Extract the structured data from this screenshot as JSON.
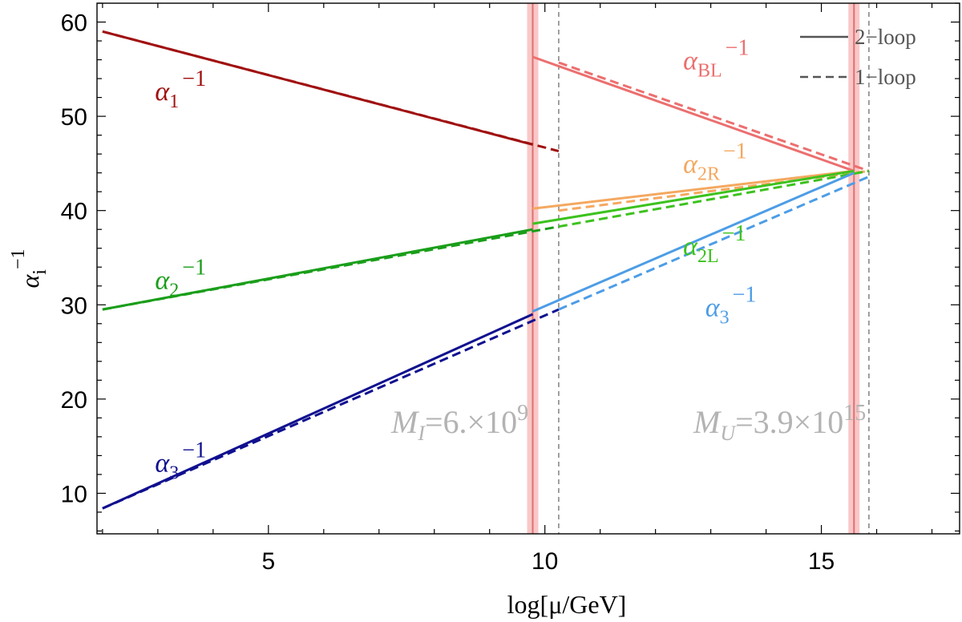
{
  "chart_data": {
    "type": "line",
    "xlabel": "log[μ/GeV]",
    "ylabel": "α_i^-1",
    "xlim": [
      1.9,
      17.5
    ],
    "ylim": [
      5.7,
      62
    ],
    "xticks": [
      5,
      10,
      15
    ],
    "yticks": [
      10,
      20,
      30,
      40,
      50,
      60
    ],
    "grid": false,
    "legend_position": "top-right",
    "legend": [
      {
        "style": "solid",
        "label": "2−loop"
      },
      {
        "style": "dashed",
        "label": "1−loop"
      }
    ],
    "thresholds": [
      {
        "x": 9.78,
        "x_1loop": 10.25,
        "label_prefix": "M",
        "label_sub": "I",
        "label_value": "=6.×10",
        "label_exp": "9"
      },
      {
        "x": 15.59,
        "x_1loop": 15.86,
        "label_prefix": "M",
        "label_sub": "U",
        "label_value": "=3.9×10",
        "label_exp": "15"
      }
    ],
    "series": [
      {
        "name": "α1−1 (2-loop)",
        "color": "#a01010",
        "style": "solid",
        "points": [
          [
            2.0,
            59.0
          ],
          [
            9.78,
            47.0
          ]
        ]
      },
      {
        "name": "α1−1 (1-loop)",
        "color": "#a01010",
        "style": "dashed",
        "points": [
          [
            2.0,
            59.0
          ],
          [
            10.25,
            46.3
          ]
        ]
      },
      {
        "name": "α2−1 (2-loop)",
        "color": "#1a9e1a",
        "style": "solid",
        "points": [
          [
            2.0,
            29.5
          ],
          [
            9.78,
            38.0
          ]
        ]
      },
      {
        "name": "α2−1 (1-loop)",
        "color": "#1a9e1a",
        "style": "dashed",
        "points": [
          [
            2.0,
            29.5
          ],
          [
            10.25,
            38.3
          ]
        ]
      },
      {
        "name": "α3−1 (2-loop)",
        "color": "#10108f",
        "style": "solid",
        "points": [
          [
            2.0,
            8.4
          ],
          [
            9.78,
            29.0
          ]
        ]
      },
      {
        "name": "α3−1 (1-loop)",
        "color": "#10108f",
        "style": "dashed",
        "points": [
          [
            2.0,
            8.4
          ],
          [
            10.25,
            29.5
          ]
        ]
      },
      {
        "name": "αBL−1 (2-loop)",
        "color": "#ec6f6f",
        "style": "solid",
        "points": [
          [
            9.78,
            56.3
          ],
          [
            15.59,
            44.2
          ]
        ]
      },
      {
        "name": "αBL−1 (1-loop)",
        "color": "#ec6f6f",
        "style": "dashed",
        "points": [
          [
            10.25,
            55.7
          ],
          [
            15.86,
            44.2
          ]
        ]
      },
      {
        "name": "α2R−1 (2-loop)",
        "color": "#f4a860",
        "style": "solid",
        "points": [
          [
            9.78,
            40.2
          ],
          [
            15.59,
            44.2
          ]
        ]
      },
      {
        "name": "α2R−1 (1-loop)",
        "color": "#f4a860",
        "style": "dashed",
        "points": [
          [
            10.25,
            40.0
          ],
          [
            15.86,
            44.2
          ]
        ]
      },
      {
        "name": "α2L−1 (2-loop)",
        "color": "#3cc21e",
        "style": "solid",
        "points": [
          [
            9.78,
            38.6
          ],
          [
            15.59,
            44.2
          ]
        ]
      },
      {
        "name": "α2L−1 (1-loop)",
        "color": "#3cc21e",
        "style": "dashed",
        "points": [
          [
            10.25,
            38.3
          ],
          [
            15.86,
            44.2
          ]
        ]
      },
      {
        "name": "α3−1 (2-loop, high)",
        "color": "#4d9de6",
        "style": "solid",
        "points": [
          [
            9.78,
            29.3
          ],
          [
            15.59,
            44.0
          ]
        ]
      },
      {
        "name": "α3−1 (1-loop, high)",
        "color": "#4d9de6",
        "style": "dashed",
        "points": [
          [
            10.25,
            29.5
          ],
          [
            15.86,
            43.6
          ]
        ]
      }
    ],
    "curve_labels": [
      {
        "base": "α",
        "sub": "1",
        "sup": "−1",
        "color": "#a01010",
        "x": 2.95,
        "y": 51.7
      },
      {
        "base": "α",
        "sub": "2",
        "sup": "−1",
        "color": "#1a9e1a",
        "x": 2.95,
        "y": 31.7
      },
      {
        "base": "α",
        "sub": "3",
        "sup": "−1",
        "color": "#10108f",
        "x": 2.95,
        "y": 12.3
      },
      {
        "base": "α",
        "sub": "BL",
        "sup": "−1",
        "color": "#ec6f6f",
        "x": 12.5,
        "y": 55.0
      },
      {
        "base": "α",
        "sub": "2R",
        "sup": "−1",
        "color": "#f4a860",
        "x": 12.5,
        "y": 44.0
      },
      {
        "base": "α",
        "sub": "2L",
        "sup": "−1",
        "color": "#3cc21e",
        "x": 12.5,
        "y": 35.3
      },
      {
        "base": "α",
        "sub": "3",
        "sup": "−1",
        "color": "#4d9de6",
        "x": 12.9,
        "y": 28.8
      }
    ]
  }
}
